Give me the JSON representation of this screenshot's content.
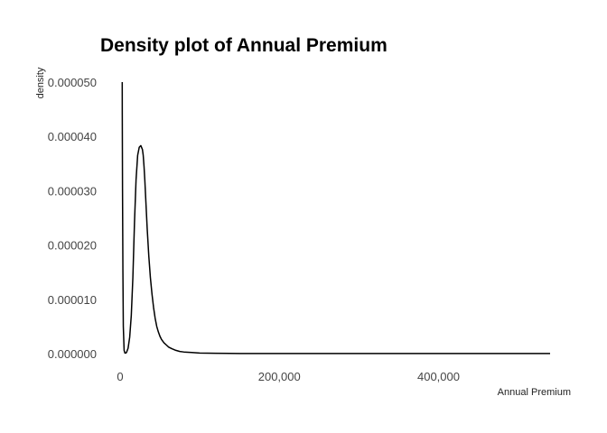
{
  "chart_data": {
    "type": "line",
    "title": "Density plot of Annual Premium",
    "xlabel": "Annual Premium",
    "ylabel": "density",
    "xlim": [
      0,
      540165
    ],
    "ylim": [
      0,
      5e-05
    ],
    "x_ticks": [
      0,
      200000,
      400000
    ],
    "x_tick_labels": [
      "0",
      "200,000",
      "400,000"
    ],
    "y_ticks": [
      0,
      1e-05,
      2e-05,
      3e-05,
      4e-05,
      5e-05
    ],
    "y_tick_labels": [
      "0.000000",
      "0.000010",
      "0.000020",
      "0.000030",
      "0.000040",
      "0.000050"
    ],
    "grid": false,
    "legend": "none",
    "line_color": "#000000",
    "series": [
      {
        "x": [
          2630,
          2700,
          3000,
          3500,
          4000,
          5000,
          6000,
          7000,
          8000,
          10000,
          12000,
          14000,
          16000,
          18000,
          20000,
          22000,
          24000,
          26000,
          28000,
          29000,
          30000,
          31000,
          32000,
          33000,
          34000,
          36000,
          38000,
          40000,
          42000,
          44000,
          46000,
          48000,
          50000,
          52000,
          55000,
          58000,
          61000,
          65000,
          70000,
          75000,
          80000,
          90000,
          100000,
          120000,
          150000,
          200000,
          250000,
          300000,
          350000,
          400000,
          450000,
          500000,
          540165
        ],
        "y": [
          5e-05,
          4.4e-05,
          3e-05,
          1.5e-05,
          5e-06,
          6e-07,
          1e-07,
          1e-07,
          2e-07,
          1e-06,
          3e-06,
          7e-06,
          1.4e-05,
          2.4e-05,
          3.2e-05,
          3.65e-05,
          3.8e-05,
          3.83e-05,
          3.76e-05,
          3.65e-05,
          3.45e-05,
          3.2e-05,
          2.9e-05,
          2.6e-05,
          2.3e-05,
          1.8e-05,
          1.4e-05,
          1.1e-05,
          8.5e-06,
          6.5e-06,
          5e-06,
          4e-06,
          3.2e-06,
          2.6e-06,
          2e-06,
          1.6e-06,
          1.2e-06,
          9e-07,
          6e-07,
          4e-07,
          3e-07,
          2e-07,
          1e-07,
          6e-08,
          3e-08,
          2e-08,
          2e-08,
          2e-08,
          2e-08,
          2e-08,
          2e-08,
          2e-08,
          2e-08
        ]
      }
    ]
  }
}
